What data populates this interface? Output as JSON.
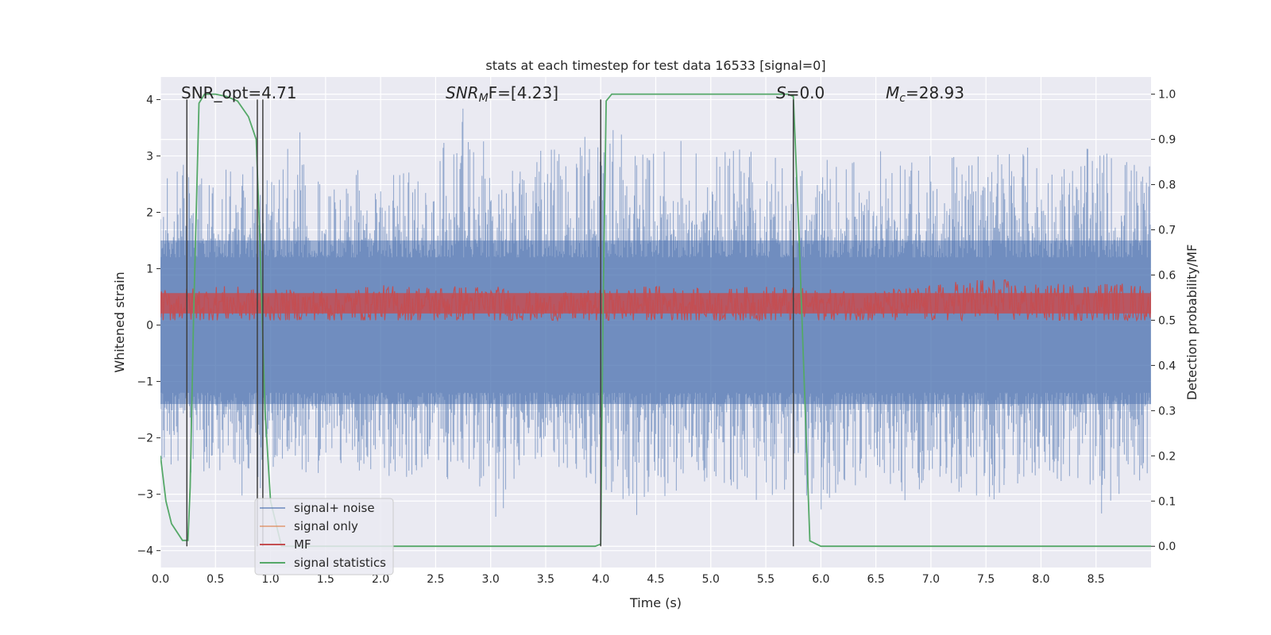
{
  "chart_data": {
    "type": "line",
    "title": "stats at each timestep for test data 16533 [signal=0]",
    "xlabel": "Time (s)",
    "ylabel": "Whitened strain",
    "ylabel_right": "Detection probability/MF",
    "xlim": [
      0.0,
      9.0
    ],
    "ylim": [
      -4.3,
      4.4
    ],
    "ylim_right": [
      -0.047,
      1.038
    ],
    "x_ticks": [
      "0.0",
      "0.5",
      "1.0",
      "1.5",
      "2.0",
      "2.5",
      "3.0",
      "3.5",
      "4.0",
      "4.5",
      "5.0",
      "5.5",
      "6.0",
      "6.5",
      "7.0",
      "7.5",
      "8.0",
      "8.5"
    ],
    "y_ticks": [
      "4",
      "3",
      "2",
      "1",
      "0",
      "−1",
      "−2",
      "−3",
      "−4"
    ],
    "y_ticks_right": [
      "1.0",
      "0.9",
      "0.8",
      "0.7",
      "0.6",
      "0.5",
      "0.4",
      "0.3",
      "0.2",
      "0.1",
      "0.0"
    ],
    "grid": true,
    "legend_position": "lower-left",
    "annotations": {
      "snr_opt": "SNR_opt=4.71",
      "snr_mf_base": "SNR",
      "snr_mf_sub": "M",
      "snr_mf_tail": "F=[4.23]",
      "s_var": "S",
      "s_value": "=0.0",
      "mc_var": "M",
      "mc_sub": "c",
      "mc_value": "=28.93"
    },
    "series": [
      {
        "name": "signal+ noise",
        "color": "#4c72b0",
        "axis": "left",
        "style": "noise band",
        "envelope_x": [
          0.0,
          0.25,
          0.5,
          0.75,
          1.0,
          1.25,
          1.5,
          1.75,
          2.0,
          2.25,
          2.5,
          2.75,
          3.0,
          3.25,
          3.5,
          3.75,
          4.0,
          4.25,
          4.5,
          4.75,
          5.0,
          5.25,
          5.5,
          5.75,
          6.0,
          6.25,
          6.5,
          6.75,
          7.0,
          7.25,
          7.5,
          7.75,
          8.0,
          8.25,
          8.5,
          8.75,
          9.0
        ],
        "envelope_upper": [
          2.6,
          3.0,
          2.7,
          3.0,
          2.6,
          3.5,
          2.4,
          2.8,
          2.6,
          2.9,
          3.4,
          4.0,
          3.0,
          2.7,
          3.2,
          3.0,
          3.8,
          3.5,
          3.0,
          3.3,
          3.0,
          3.2,
          3.1,
          3.1,
          3.0,
          3.0,
          3.2,
          2.8,
          3.2,
          3.1,
          3.1,
          3.4,
          3.0,
          3.0,
          3.2,
          3.1,
          2.8
        ],
        "envelope_lower": [
          -2.4,
          -2.6,
          -2.8,
          -3.3,
          -2.7,
          -2.6,
          -2.8,
          -2.7,
          -2.7,
          -2.8,
          -2.7,
          -2.8,
          -3.9,
          -2.6,
          -2.6,
          -2.6,
          -3.0,
          -3.6,
          -3.1,
          -2.9,
          -2.8,
          -3.0,
          -3.3,
          -2.9,
          -3.5,
          -3.0,
          -2.6,
          -3.2,
          -3.0,
          -3.0,
          -3.3,
          -2.8,
          -2.9,
          -2.9,
          -3.5,
          -3.0,
          -2.8
        ]
      },
      {
        "name": "signal only",
        "color": "#dd8452",
        "axis": "left",
        "x": [],
        "y": []
      },
      {
        "name": "MF",
        "color": "#c44e52",
        "axis": "right",
        "style": "noise band",
        "envelope_x": [
          0.0,
          0.5,
          1.0,
          1.5,
          2.0,
          2.5,
          3.0,
          3.5,
          4.0,
          4.5,
          5.0,
          5.5,
          6.0,
          6.5,
          7.0,
          7.5,
          8.0,
          8.5,
          9.0
        ],
        "envelope_upper": [
          0.57,
          0.58,
          0.57,
          0.57,
          0.58,
          0.58,
          0.58,
          0.56,
          0.57,
          0.58,
          0.57,
          0.58,
          0.57,
          0.57,
          0.58,
          0.6,
          0.58,
          0.59,
          0.58
        ],
        "envelope_lower": [
          0.5,
          0.5,
          0.5,
          0.5,
          0.5,
          0.5,
          0.5,
          0.5,
          0.5,
          0.5,
          0.5,
          0.5,
          0.5,
          0.5,
          0.5,
          0.5,
          0.5,
          0.5,
          0.5
        ]
      },
      {
        "name": "signal statistics",
        "color": "#55a868",
        "axis": "right",
        "x": [
          0.0,
          0.05,
          0.1,
          0.2,
          0.25,
          0.27,
          0.3,
          0.35,
          0.4,
          0.5,
          0.6,
          0.7,
          0.8,
          0.87,
          0.9,
          0.95,
          1.0,
          1.1,
          2.0,
          3.0,
          3.95,
          4.0,
          4.02,
          4.05,
          4.1,
          4.5,
          5.0,
          5.5,
          5.7,
          5.75,
          5.8,
          5.9,
          6.0,
          7.0,
          8.0,
          9.0
        ],
        "y": [
          0.2,
          0.1,
          0.05,
          0.013,
          0.013,
          0.13,
          0.5,
          0.98,
          1.0,
          1.0,
          0.995,
          0.985,
          0.95,
          0.9,
          0.7,
          0.3,
          0.1,
          0.0,
          0.0,
          0.0,
          0.0,
          0.005,
          0.5,
          0.985,
          1.0,
          1.0,
          1.0,
          1.0,
          1.0,
          0.995,
          0.7,
          0.012,
          0.0,
          0.0,
          0.0,
          0.0
        ]
      }
    ],
    "markers": {
      "color": "#404040",
      "x": [
        0.24,
        0.88,
        0.93,
        4.0,
        5.75
      ]
    }
  }
}
